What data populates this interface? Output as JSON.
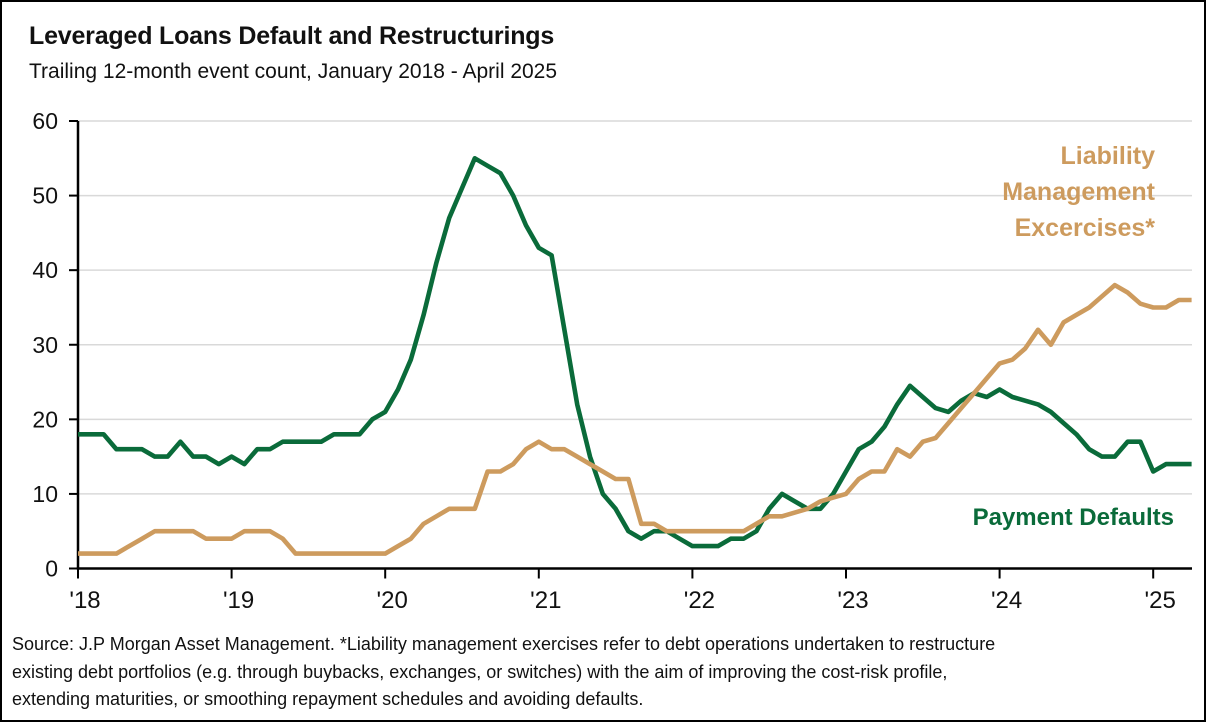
{
  "title": "Leveraged Loans Default and Restructurings",
  "subtitle": "Trailing 12-month event count, January 2018 - April 2025",
  "legend": {
    "lme_lines": [
      "Liability",
      "Management",
      "Excercises*"
    ],
    "defaults_label": "Payment Defaults"
  },
  "source": {
    "line1": "Source: J.P Morgan Asset Management. *Liability management exercises refer to debt operations undertaken to restructure",
    "line2": "existing debt portfolios (e.g. through buybacks, exchanges, or switches) with the aim of improving the cost-risk profile,",
    "line3": "extending maturities, or smoothing repayment schedules and avoiding defaults."
  },
  "colors": {
    "defaults_green": "#0A6B3A",
    "lme_tan": "#CD9B5E",
    "grid": "#d9d9d9",
    "axis": "#000000",
    "text": "#111111"
  },
  "chart_data": {
    "type": "line",
    "title": "Leveraged Loans Default and Restructurings",
    "subtitle": "Trailing 12-month event count, January 2018 - April 2025",
    "x_unit": "month",
    "x_start": "2018-01",
    "x_end": "2025-04",
    "x_tick_labels": [
      "'18",
      "'19",
      "'20",
      "'21",
      "'22",
      "'23",
      "'24",
      "'25"
    ],
    "y_ticks": [
      0,
      10,
      20,
      30,
      40,
      50,
      60
    ],
    "ylim": [
      0,
      60
    ],
    "grid": "horizontal",
    "legend_position": "inline-right",
    "series": [
      {
        "name": "Payment Defaults",
        "color": "#0A6B3A",
        "values": [
          18,
          18,
          18,
          16,
          16,
          16,
          15,
          15,
          17,
          15,
          15,
          14,
          15,
          14,
          16,
          16,
          17,
          17,
          17,
          17,
          18,
          18,
          18,
          20,
          21,
          24,
          28,
          34,
          41,
          47,
          51,
          55,
          54,
          53,
          50,
          46,
          43,
          42,
          32,
          22,
          15,
          10,
          8,
          5,
          4,
          5,
          5,
          4,
          3,
          3,
          3,
          4,
          4,
          5,
          8,
          10,
          9,
          8,
          8,
          10,
          13,
          16,
          17,
          19,
          22,
          24.5,
          23,
          21.5,
          21,
          22.5,
          23.5,
          23,
          24,
          23,
          22.5,
          22,
          21,
          19.5,
          18,
          16,
          15,
          15,
          17,
          17,
          13,
          14,
          14,
          14
        ]
      },
      {
        "name": "Liability Management Excercises*",
        "color": "#CD9B5E",
        "values": [
          2,
          2,
          2,
          2,
          3,
          4,
          5,
          5,
          5,
          5,
          4,
          4,
          4,
          5,
          5,
          5,
          4,
          2,
          2,
          2,
          2,
          2,
          2,
          2,
          2,
          3,
          4,
          6,
          7,
          8,
          8,
          8,
          13,
          13,
          14,
          16,
          17,
          16,
          16,
          15,
          14,
          13,
          12,
          12,
          6,
          6,
          5,
          5,
          5,
          5,
          5,
          5,
          5,
          6,
          7,
          7,
          7.5,
          8,
          9,
          9.5,
          10,
          12,
          13,
          13,
          16,
          15,
          17,
          17.5,
          19.5,
          21.5,
          23.5,
          25.5,
          27.5,
          28,
          29.5,
          32,
          30,
          33,
          34,
          35,
          36.5,
          38,
          37,
          35.5,
          35,
          35,
          36,
          36
        ]
      }
    ]
  }
}
